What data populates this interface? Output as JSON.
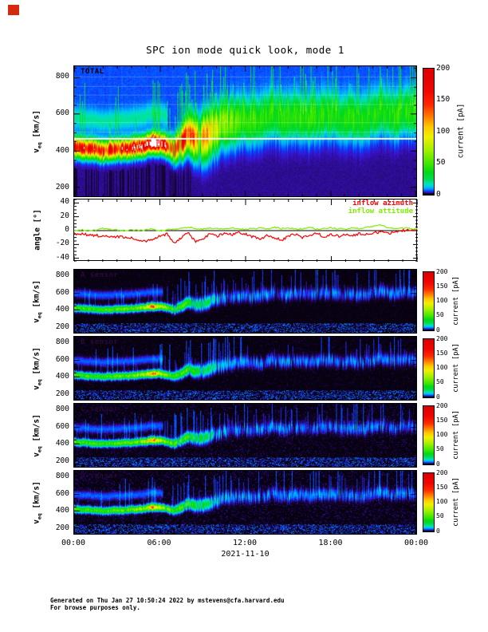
{
  "title": "SPC ion mode quick look, mode 1",
  "footer": {
    "line1": "Generated on Thu Jan 27 10:50:24 2022 by mstevens@cfa.harvard.edu",
    "line2": "For browse purposes only."
  },
  "chart_data": {
    "type": "heatmap",
    "title": "SPC ion mode quick look, mode 1",
    "date": "2021-11-10",
    "x": {
      "tick_labels": [
        "00:00",
        "06:00",
        "12:00",
        "18:00",
        "00:00"
      ],
      "tick_hours": [
        0,
        6,
        12,
        18,
        24
      ],
      "minor_tick_hours": 1,
      "range_hours": [
        0,
        24
      ]
    },
    "hours": [
      0,
      0.5,
      1,
      1.5,
      2,
      2.5,
      3,
      3.5,
      4,
      4.5,
      5,
      5.5,
      6,
      6.5,
      7,
      7.5,
      8,
      8.5,
      9,
      9.5,
      10,
      10.5,
      11,
      11.5,
      12,
      12.5,
      13,
      13.5,
      14,
      14.5,
      15,
      15.5,
      16,
      16.5,
      17,
      17.5,
      18,
      18.5,
      19,
      19.5,
      20,
      20.5,
      21,
      21.5,
      22,
      22.5,
      23,
      23.5,
      24
    ],
    "beam_track": {
      "speed_kms": [
        420,
        416,
        410,
        404,
        400,
        404,
        408,
        410,
        414,
        420,
        428,
        442,
        438,
        424,
        402,
        438,
        488,
        462,
        468,
        488,
        518,
        538,
        550,
        558,
        568,
        556,
        560,
        578,
        598,
        580,
        570,
        588,
        584,
        570,
        588,
        598,
        594,
        580,
        572,
        588,
        562,
        578,
        598,
        618,
        598,
        582,
        598,
        608,
        600
      ],
      "current_total_pA": [
        162,
        158,
        160,
        155,
        150,
        158,
        165,
        160,
        168,
        178,
        195,
        238,
        205,
        172,
        148,
        155,
        140,
        118,
        108,
        95,
        72,
        60,
        52,
        46,
        42,
        40,
        38,
        40,
        36,
        38,
        40,
        36,
        38,
        34,
        36,
        40,
        38,
        36,
        34,
        38,
        34,
        36,
        32,
        36,
        34,
        38,
        34,
        36,
        34
      ],
      "current_sensor_pA": [
        52,
        48,
        50,
        46,
        44,
        48,
        55,
        52,
        58,
        64,
        75,
        128,
        82,
        60,
        48,
        52,
        44,
        36,
        30,
        24,
        16,
        13,
        11,
        10,
        9,
        10,
        9,
        10,
        8,
        9,
        10,
        8,
        9,
        8,
        9,
        10,
        9,
        8,
        8,
        9,
        8,
        9,
        8,
        9,
        8,
        9,
        8,
        9,
        8
      ]
    },
    "colorbar": {
      "label": "current [pA]",
      "ticks": [
        0,
        50,
        100,
        150,
        200
      ],
      "range": [
        0,
        200
      ],
      "stops": [
        [
          0,
          "#05000a"
        ],
        [
          1.5,
          "#1c0648"
        ],
        [
          3,
          "#3912c8"
        ],
        [
          5,
          "#0a3cff"
        ],
        [
          8,
          "#0090ff"
        ],
        [
          12,
          "#00c8f0"
        ],
        [
          17,
          "#00e4b0"
        ],
        [
          24,
          "#00dc50"
        ],
        [
          35,
          "#00d818"
        ],
        [
          48,
          "#3ce800"
        ],
        [
          70,
          "#a0f000"
        ],
        [
          92,
          "#f0f000"
        ],
        [
          108,
          "#ffc800"
        ],
        [
          125,
          "#ff7700"
        ],
        [
          142,
          "#ff2a00"
        ],
        [
          165,
          "#f20600"
        ],
        [
          200,
          "#dc0000"
        ]
      ],
      "saturation_color": "#ffffff"
    },
    "panels": [
      {
        "id": "total",
        "kind": "spectrogram",
        "label": "TOTAL",
        "ylabel": {
          "base": "v",
          "sub": "eq",
          "unit": " [km/s]"
        },
        "yticks": [
          200,
          400,
          600,
          800
        ],
        "ylim": [
          150,
          860
        ],
        "background": "blue",
        "white_line_kms": 465,
        "sigma_kms_early": 30,
        "sigma_kms_late": 72,
        "current_key": "current_total_pA",
        "alpha_band": {
          "offset_kms": 160,
          "sigma_kms": 34,
          "amp_pA": 13,
          "until_hour": 6.5
        }
      },
      {
        "id": "angles",
        "kind": "line",
        "ylabel": {
          "base": "angle",
          "sub": "",
          "unit": " [°]"
        },
        "yticks": [
          -40,
          -20,
          0,
          20,
          40
        ],
        "ylim": [
          -45,
          45
        ],
        "zero_line": 0,
        "series": [
          {
            "name": "inflow azimuth",
            "color": "#ff0000",
            "deg": [
              -4,
              -5,
              -6,
              -7,
              -8,
              -8,
              -9,
              -10,
              -11,
              -13,
              -15,
              -12,
              -8,
              -5,
              -18,
              -10,
              -3,
              -17,
              -12,
              -5,
              -8,
              -4,
              -6,
              -3,
              -5,
              -9,
              -12,
              -7,
              -10,
              -14,
              -8,
              -5,
              -10,
              -7,
              -4,
              -9,
              -6,
              -8,
              -5,
              -7,
              -4,
              -6,
              -3,
              -2,
              -4,
              -1,
              0,
              2,
              1
            ]
          },
          {
            "name": "inflow attitude",
            "color": "#7cf000",
            "deg": [
              0,
              1,
              0,
              1,
              3,
              2,
              1,
              0,
              1,
              0,
              1,
              2,
              0,
              1,
              2,
              3,
              5,
              3,
              2,
              4,
              3,
              2,
              4,
              3,
              2,
              3,
              4,
              2,
              5,
              3,
              4,
              2,
              3,
              5,
              2,
              3,
              4,
              3,
              2,
              4,
              3,
              5,
              6,
              8,
              4,
              3,
              4,
              3,
              3
            ]
          }
        ]
      },
      {
        "id": "sensor-a",
        "kind": "spectrogram",
        "label": "A sensor",
        "ylabel": {
          "base": "v",
          "sub": "eq",
          "unit": " [km/s]"
        },
        "yticks": [
          200,
          400,
          600,
          800
        ],
        "ylim": [
          130,
          870
        ],
        "background": "black",
        "speckle": 0.14,
        "sigma_kms_early": 22,
        "sigma_kms_late": 40,
        "current_key": "current_sensor_pA",
        "secondary_band": {
          "offset_kms": 170,
          "sigma_kms": 30,
          "amp_pA": 6,
          "until_hour": 6.2
        }
      },
      {
        "id": "sensor-b",
        "kind": "spectrogram",
        "label": "B sensor",
        "ylabel": {
          "base": "v",
          "sub": "eq",
          "unit": " [km/s]"
        },
        "yticks": [
          200,
          400,
          600,
          800
        ],
        "ylim": [
          130,
          870
        ],
        "background": "black",
        "speckle": 0.16,
        "sigma_kms_early": 22,
        "sigma_kms_late": 40,
        "current_key": "current_sensor_pA",
        "secondary_band": {
          "offset_kms": 170,
          "sigma_kms": 30,
          "amp_pA": 6,
          "until_hour": 6.2
        }
      },
      {
        "id": "sensor-c",
        "kind": "spectrogram",
        "label": "C sensor",
        "ylabel": {
          "base": "v",
          "sub": "eq",
          "unit": " [km/s]"
        },
        "yticks": [
          200,
          400,
          600,
          800
        ],
        "ylim": [
          130,
          870
        ],
        "background": "black",
        "speckle": 0.22,
        "sigma_kms_early": 22,
        "sigma_kms_late": 40,
        "current_key": "current_sensor_pA",
        "secondary_band": {
          "offset_kms": 170,
          "sigma_kms": 30,
          "amp_pA": 6,
          "until_hour": 6.2
        }
      },
      {
        "id": "sensor-d",
        "kind": "spectrogram",
        "label": "D sensor",
        "ylabel": {
          "base": "v",
          "sub": "eq",
          "unit": " [km/s]"
        },
        "yticks": [
          200,
          400,
          600,
          800
        ],
        "ylim": [
          130,
          870
        ],
        "background": "black",
        "speckle": 0.24,
        "sigma_kms_early": 22,
        "sigma_kms_late": 40,
        "current_key": "current_sensor_pA",
        "secondary_band": {
          "offset_kms": 170,
          "sigma_kms": 30,
          "amp_pA": 6,
          "until_hour": 6.2
        }
      }
    ]
  }
}
